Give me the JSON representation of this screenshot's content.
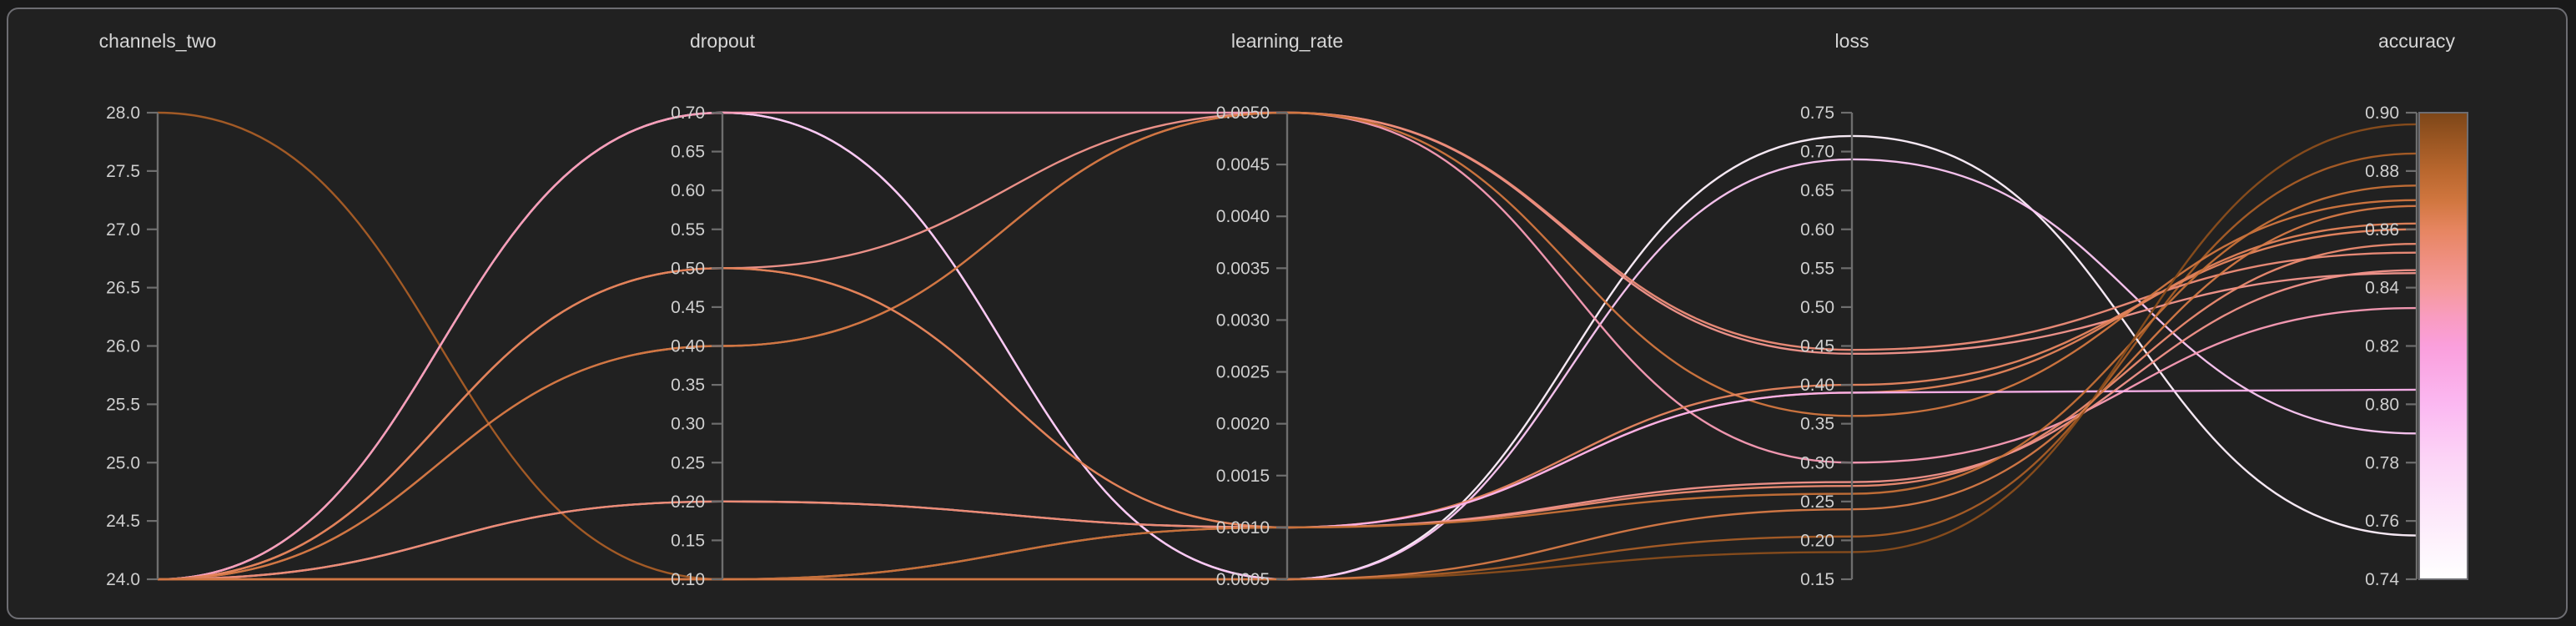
{
  "chart_data": {
    "type": "parallel-coordinates",
    "theme": "dark",
    "background_color": "#212121",
    "axis_color": "#6e6e6e",
    "text_color": "#d6d6d6",
    "legend_position": "right-colorbar",
    "color_by": "accuracy",
    "axes": [
      {
        "label": "channels_two",
        "min": 24.0,
        "max": 28.0,
        "tick_labels": [
          "28.0",
          "27.5",
          "27.0",
          "26.5",
          "26.0",
          "25.5",
          "25.0",
          "24.5",
          "24.0"
        ],
        "tick_values": [
          28.0,
          27.5,
          27.0,
          26.5,
          26.0,
          25.5,
          25.0,
          24.5,
          24.0
        ]
      },
      {
        "label": "dropout",
        "min": 0.1,
        "max": 0.7,
        "tick_labels": [
          "0.70",
          "0.65",
          "0.60",
          "0.55",
          "0.50",
          "0.45",
          "0.40",
          "0.35",
          "0.30",
          "0.25",
          "0.20",
          "0.15",
          "0.10"
        ],
        "tick_values": [
          0.7,
          0.65,
          0.6,
          0.55,
          0.5,
          0.45,
          0.4,
          0.35,
          0.3,
          0.25,
          0.2,
          0.15,
          0.1
        ]
      },
      {
        "label": "learning_rate",
        "min": 0.0005,
        "max": 0.005,
        "tick_labels": [
          "0.0050",
          "0.0045",
          "0.0040",
          "0.0035",
          "0.0030",
          "0.0025",
          "0.0020",
          "0.0015",
          "0.0010",
          "0.0005"
        ],
        "tick_values": [
          0.005,
          0.0045,
          0.004,
          0.0035,
          0.003,
          0.0025,
          0.002,
          0.0015,
          0.001,
          0.0005
        ]
      },
      {
        "label": "loss",
        "min": 0.15,
        "max": 0.75,
        "tick_labels": [
          "0.75",
          "0.70",
          "0.65",
          "0.60",
          "0.55",
          "0.50",
          "0.45",
          "0.40",
          "0.35",
          "0.30",
          "0.25",
          "0.20",
          "0.15"
        ],
        "tick_values": [
          0.75,
          0.7,
          0.65,
          0.6,
          0.55,
          0.5,
          0.45,
          0.4,
          0.35,
          0.3,
          0.25,
          0.2,
          0.15
        ]
      },
      {
        "label": "accuracy",
        "min": 0.74,
        "max": 0.9,
        "tick_labels": [
          "0.90",
          "0.88",
          "0.86",
          "0.84",
          "0.82",
          "0.80",
          "0.78",
          "0.76",
          "0.74"
        ],
        "tick_values": [
          0.9,
          0.88,
          0.86,
          0.84,
          0.82,
          0.8,
          0.78,
          0.76,
          0.74
        ]
      }
    ],
    "runs": [
      {
        "channels_two": 28.0,
        "dropout": 0.1,
        "learning_rate": 0.0005,
        "loss": 0.205,
        "accuracy": 0.886
      },
      {
        "channels_two": 24.0,
        "dropout": 0.7,
        "learning_rate": 0.0005,
        "loss": 0.72,
        "accuracy": 0.755
      },
      {
        "channels_two": 24.0,
        "dropout": 0.7,
        "learning_rate": 0.0005,
        "loss": 0.69,
        "accuracy": 0.79
      },
      {
        "channels_two": 24.0,
        "dropout": 0.7,
        "learning_rate": 0.005,
        "loss": 0.3,
        "accuracy": 0.833
      },
      {
        "channels_two": 24.0,
        "dropout": 0.5,
        "learning_rate": 0.005,
        "loss": 0.44,
        "accuracy": 0.845
      },
      {
        "channels_two": 24.0,
        "dropout": 0.4,
        "learning_rate": 0.005,
        "loss": 0.445,
        "accuracy": 0.852
      },
      {
        "channels_two": 24.0,
        "dropout": 0.4,
        "learning_rate": 0.005,
        "loss": 0.36,
        "accuracy": 0.87
      },
      {
        "channels_two": 24.0,
        "dropout": 0.5,
        "learning_rate": 0.001,
        "loss": 0.4,
        "accuracy": 0.86
      },
      {
        "channels_two": 24.0,
        "dropout": 0.5,
        "learning_rate": 0.001,
        "loss": 0.39,
        "accuracy": 0.862
      },
      {
        "channels_two": 24.0,
        "dropout": 0.2,
        "learning_rate": 0.001,
        "loss": 0.39,
        "accuracy": 0.805
      },
      {
        "channels_two": 24.0,
        "dropout": 0.2,
        "learning_rate": 0.001,
        "loss": 0.27,
        "accuracy": 0.855
      },
      {
        "channels_two": 24.0,
        "dropout": 0.1,
        "learning_rate": 0.001,
        "loss": 0.275,
        "accuracy": 0.846
      },
      {
        "channels_two": 24.0,
        "dropout": 0.1,
        "learning_rate": 0.001,
        "loss": 0.26,
        "accuracy": 0.875
      },
      {
        "channels_two": 24.0,
        "dropout": 0.1,
        "learning_rate": 0.0005,
        "loss": 0.185,
        "accuracy": 0.896
      },
      {
        "channels_two": 24.0,
        "dropout": 0.1,
        "learning_rate": 0.0005,
        "loss": 0.24,
        "accuracy": 0.868
      }
    ],
    "colorbar": {
      "axis": "accuracy",
      "top_value": 0.9,
      "bottom_value": 0.74,
      "stops": [
        {
          "value": 0.9,
          "color": "#7d4618"
        },
        {
          "value": 0.89,
          "color": "#9c5723"
        },
        {
          "value": 0.88,
          "color": "#b9672e"
        },
        {
          "value": 0.87,
          "color": "#d0763f"
        },
        {
          "value": 0.86,
          "color": "#e68560"
        },
        {
          "value": 0.85,
          "color": "#ef8f7f"
        },
        {
          "value": 0.84,
          "color": "#f59a9b"
        },
        {
          "value": 0.83,
          "color": "#f99cc0"
        },
        {
          "value": 0.82,
          "color": "#fa9fdc"
        },
        {
          "value": 0.8,
          "color": "#fbb8f1"
        },
        {
          "value": 0.78,
          "color": "#fcd6f7"
        },
        {
          "value": 0.76,
          "color": "#fdebfb"
        },
        {
          "value": 0.74,
          "color": "#ffffff"
        }
      ]
    }
  }
}
